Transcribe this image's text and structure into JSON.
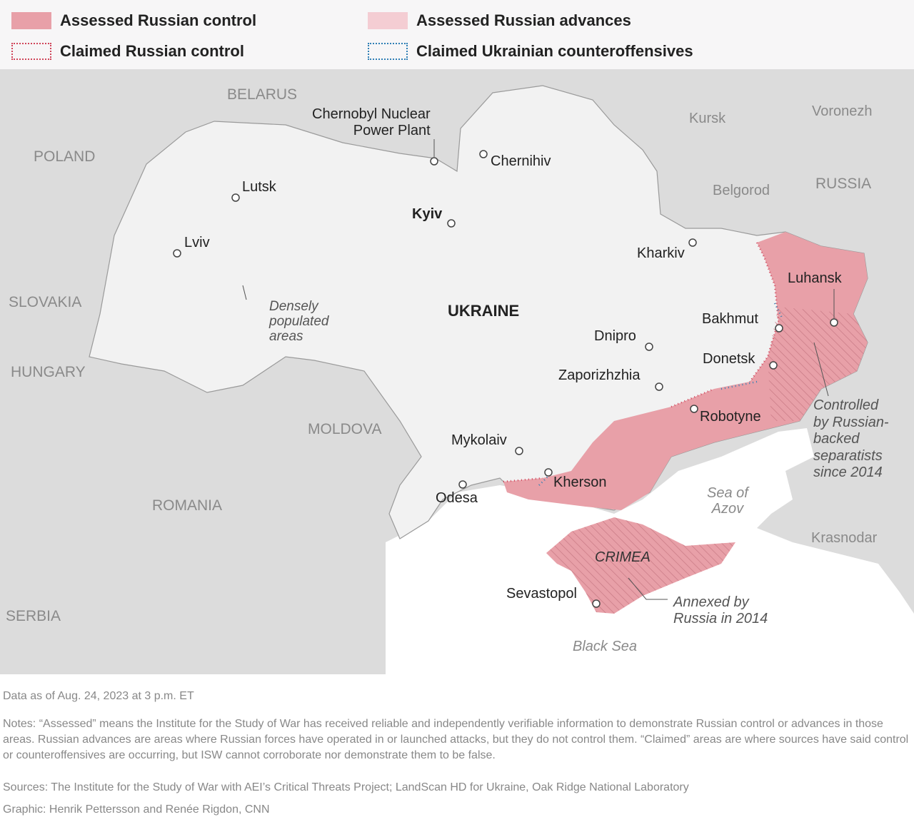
{
  "legend": {
    "items": [
      {
        "label": "Assessed Russian control",
        "color": "#e8a0a8",
        "style": "fill"
      },
      {
        "label": "Assessed Russian advances",
        "color": "#f4cdd3",
        "style": "fill"
      },
      {
        "label": "Claimed Russian control",
        "color": "#d0455a",
        "style": "dotted"
      },
      {
        "label": "Claimed Ukrainian counteroffensives",
        "color": "#2f7fb5",
        "style": "dotted"
      }
    ]
  },
  "map": {
    "countries": {
      "belarus": "BELARUS",
      "poland": "POLAND",
      "slovakia": "SLOVAKIA",
      "hungary": "HUNGARY",
      "moldova": "MOLDOVA",
      "romania": "ROMANIA",
      "serbia": "SERBIA",
      "russia": "RUSSIA",
      "ukraine": "UKRAINE"
    },
    "cities": {
      "chernobyl": "Chernobyl Nuclear\nPower Plant",
      "chernihiv": "Chernihiv",
      "lutsk": "Lutsk",
      "kyiv": "Kyiv",
      "lviv": "Lviv",
      "kharkiv": "Kharkiv",
      "kursk": "Kursk",
      "voronezh": "Voronezh",
      "belgorod": "Belgorod",
      "luhansk": "Luhansk",
      "bakhmut": "Bakhmut",
      "dnipro": "Dnipro",
      "donetsk": "Donetsk",
      "zaporizhzhia": "Zaporizhzhia",
      "robotyne": "Robotyne",
      "mykolaiv": "Mykolaiv",
      "kherson": "Kherson",
      "odesa": "Odesa",
      "sevastopol": "Sevastopol",
      "krasnodar": "Krasnodar"
    },
    "regions": {
      "crimea": "CRIMEA"
    },
    "water": {
      "azov": "Sea of\nAzov",
      "black_sea": "Black Sea"
    },
    "annotations": {
      "densely": "Densely\npopulated\nareas",
      "separatists": "Controlled\nby Russian-\nbacked\nseparatists\nsince 2014",
      "annexed": "Annexed by\nRussia in 2014"
    },
    "colors": {
      "land": "#f2f2f2",
      "neighbors": "#dcdcdc",
      "sea": "#ffffff",
      "control": "#e8a0a8",
      "hatch": "#c97b86"
    }
  },
  "footer": {
    "data_as_of": "Data as of Aug. 24, 2023 at 3 p.m. ET",
    "notes": "Notes: “Assessed” means the Institute for the Study of War has received reliable and independently verifiable information to demonstrate Russian control or advances in those areas. Russian advances are areas where Russian forces have operated in or launched attacks, but they do not control them. “Claimed” areas are where sources have said control or counteroffensives are occurring, but ISW cannot corroborate nor demonstrate them to be false.",
    "sources": "Sources: The Institute for the Study of War with AEI’s Critical Threats Project; LandScan HD for Ukraine, Oak Ridge National Laboratory",
    "graphic": "Graphic: Henrik Pettersson and Renée Rigdon, CNN"
  }
}
